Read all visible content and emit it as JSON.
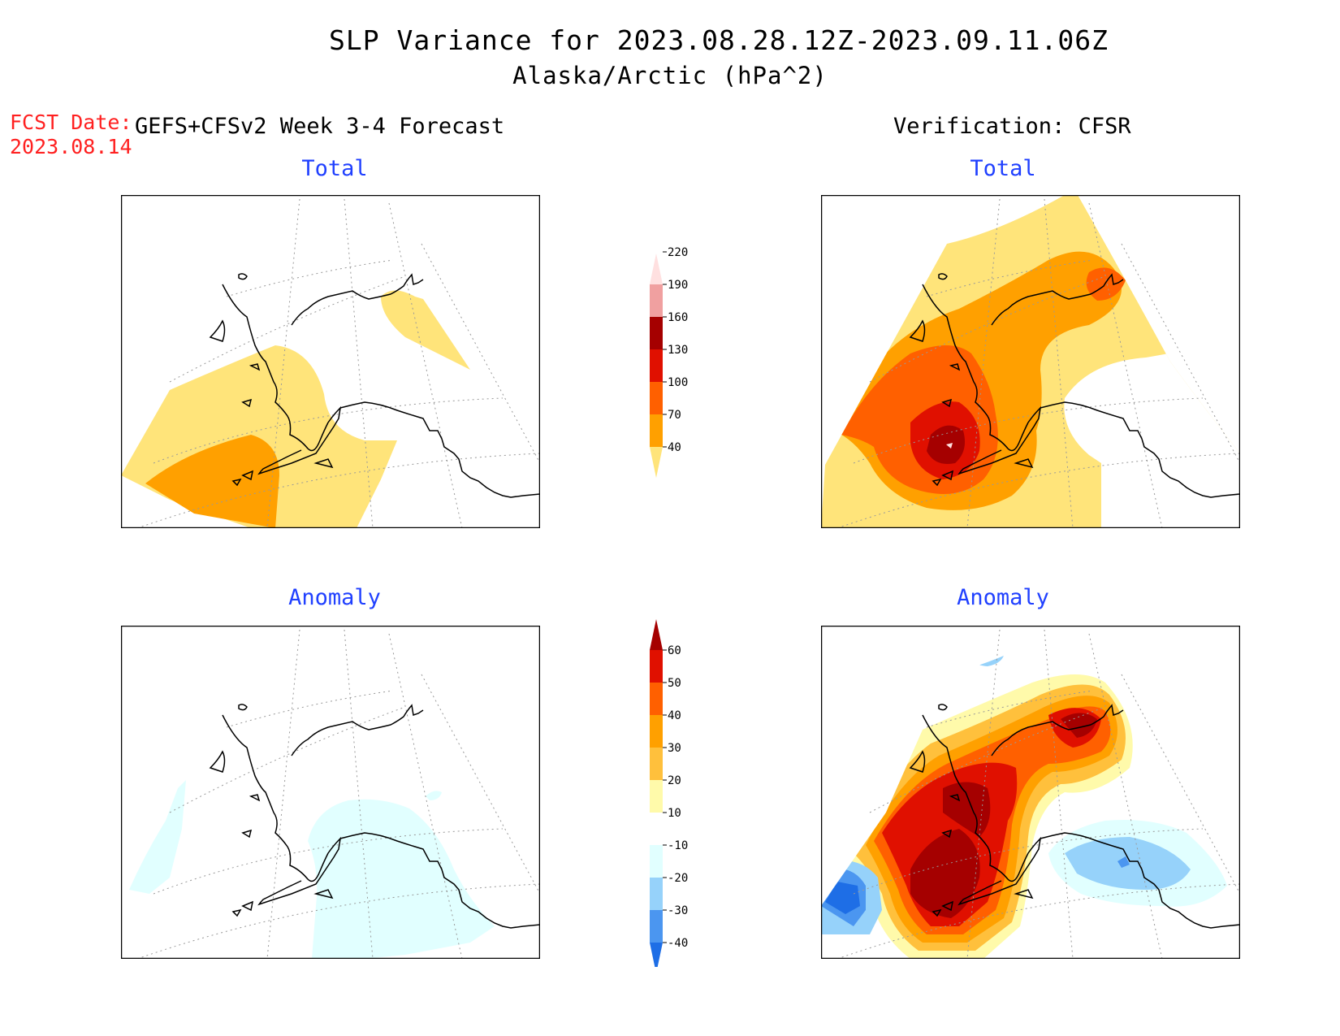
{
  "title": {
    "line1": "SLP Variance for 2023.08.28.12Z-2023.09.11.06Z",
    "line2": "Alaska/Arctic (hPa^2)"
  },
  "fcst_date": {
    "label": "FCST Date:",
    "value": "2023.08.14"
  },
  "columns": {
    "forecast": "GEFS+CFSv2 Week 3-4 Forecast",
    "verification": "Verification: CFSR"
  },
  "panels": {
    "fcst_total": {
      "title": "Total"
    },
    "verif_total": {
      "title": "Total"
    },
    "fcst_anom": {
      "title": "Anomaly"
    },
    "verif_anom": {
      "title": "Anomaly"
    }
  },
  "colorbars": {
    "total": {
      "levels": [
        "40",
        "70",
        "100",
        "130",
        "160",
        "190",
        "220"
      ],
      "colors": [
        "#ffe47a",
        "#ffa000",
        "#ff6000",
        "#e01000",
        "#a50000",
        "#f0a0a0",
        "#ffe0e0"
      ]
    },
    "anomaly": {
      "levels": [
        "-40",
        "-30",
        "-20",
        "-10",
        "10",
        "20",
        "30",
        "40",
        "50",
        "60"
      ],
      "colors": [
        "#1e6ee6",
        "#4b96f0",
        "#96d2fa",
        "#e1ffff",
        "#ffffff",
        "#fffaaa",
        "#ffc03c",
        "#ffa000",
        "#ff6000",
        "#e01000",
        "#a50000"
      ]
    }
  }
}
